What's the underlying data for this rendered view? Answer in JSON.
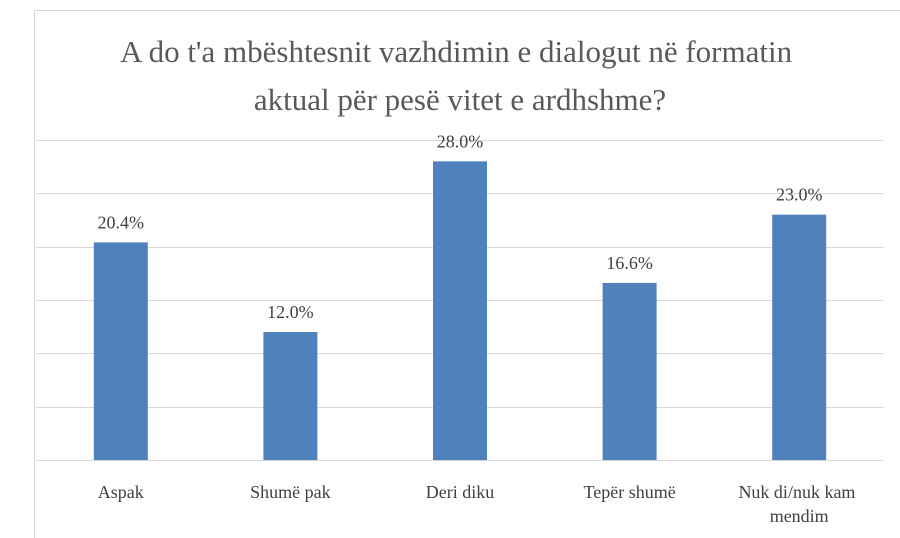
{
  "chart_data": {
    "type": "bar",
    "title": "A do t'a mbështesnit vazhdimin e dialogut në formatin aktual për pesë vitet e ardhshme?",
    "categories": [
      "Aspak",
      "Shumë pak",
      "Deri diku",
      "Tepër shumë",
      "Nuk di/nuk kam mendim"
    ],
    "values": [
      20.4,
      12.0,
      28.0,
      16.6,
      23.0
    ],
    "value_labels": [
      "20.4%",
      "12.0%",
      "28.0%",
      "16.6%",
      "23.0%"
    ],
    "color": "#4f81bd",
    "ylim": [
      0,
      30
    ],
    "yticks": [
      0,
      5,
      10,
      15,
      20,
      25,
      30
    ],
    "grid": true
  }
}
